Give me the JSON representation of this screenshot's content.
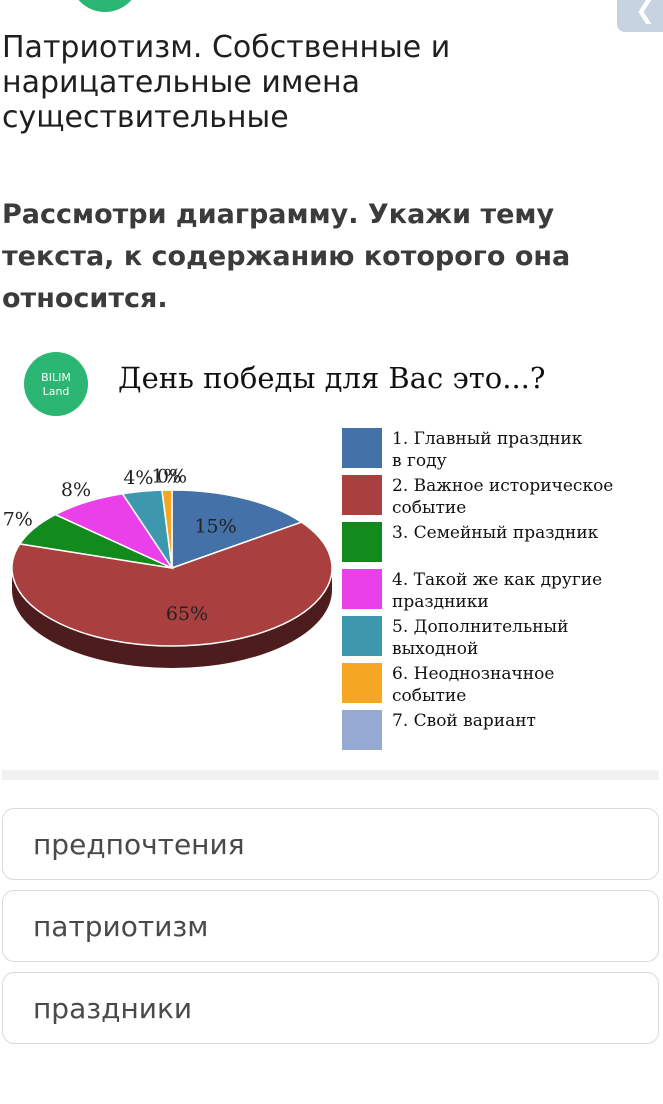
{
  "header": {
    "close_glyph": "❮"
  },
  "lesson": {
    "title": "Патриотизм. Собственные и нарицательные имена существительные"
  },
  "task": {
    "instruction": "Рассмотри диаграмму. Укажи тему текста, к содержанию которого она относится."
  },
  "figure": {
    "logo_line1": "BILIM",
    "logo_line2": "Land",
    "logo_color": "#2bb673"
  },
  "chart_data": {
    "type": "pie",
    "title": "День победы для Вас это...?",
    "slices": [
      {
        "label": "1. Главный праздник в году",
        "label_lines": [
          "1. Главный праздник",
          "в году"
        ],
        "value": 15,
        "value_text": "15%",
        "color": "#4472a8"
      },
      {
        "label": "2. Важное историческое событие",
        "label_lines": [
          "2. Важное историческое",
          "событие"
        ],
        "value": 65,
        "value_text": "65%",
        "color": "#a9403f"
      },
      {
        "label": "3. Семейный праздник",
        "label_lines": [
          "3. Семейный праздник"
        ],
        "value": 7,
        "value_text": "7%",
        "color": "#128a1c"
      },
      {
        "label": "4. Такой же как другие праздники",
        "label_lines": [
          "4. Такой же как другие",
          "праздники"
        ],
        "value": 8,
        "value_text": "8%",
        "color": "#e940e9"
      },
      {
        "label": "5. Дополнительный выходной",
        "label_lines": [
          "5. Дополнительный",
          "выходной"
        ],
        "value": 4,
        "value_text": "4%",
        "color": "#3d97ad"
      },
      {
        "label": "6. Неоднозначное событие",
        "label_lines": [
          "6. Неоднозначное",
          "событие"
        ],
        "value": 1,
        "value_text": "1%",
        "color": "#f5a623"
      },
      {
        "label": "7. Свой вариант",
        "label_lines": [
          "7. Свой вариант"
        ],
        "value": 0,
        "value_text": "0%",
        "color": "#95a9d2"
      }
    ],
    "legend_position": "right"
  },
  "answers": [
    {
      "label": "предпочтения"
    },
    {
      "label": "патриотизм"
    },
    {
      "label": "праздники"
    }
  ]
}
